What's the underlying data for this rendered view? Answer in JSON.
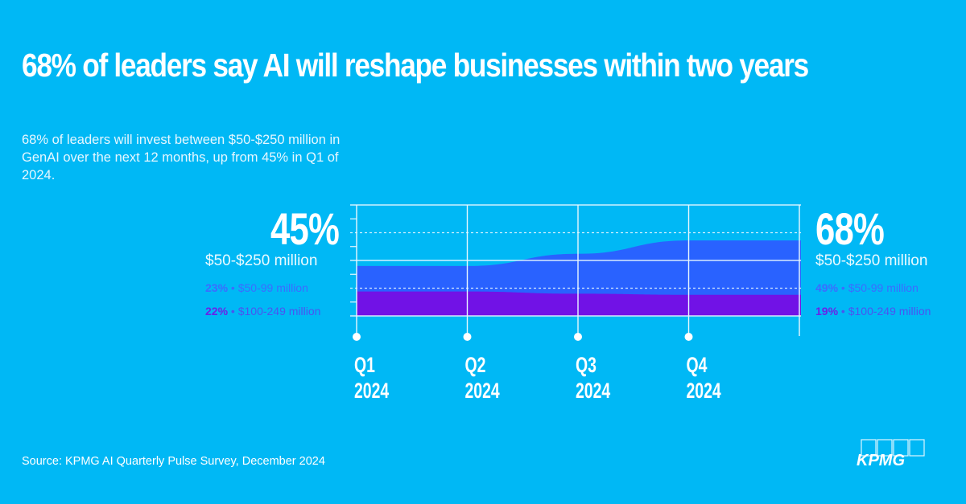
{
  "title": "68% of leaders say AI will reshape businesses within two years",
  "subtitle": "68% of leaders will invest between $50-$250 million in GenAI over the next 12 months, up from 45% in Q1 of 2024.",
  "left_callout": {
    "big": "45%",
    "range": "$50-$250 million",
    "line1_pct": "23%",
    "line1_text": " • $50-99 million",
    "line2_pct": "22%",
    "line2_text": " • $100-249 million"
  },
  "right_callout": {
    "big": "68%",
    "range": "$50-$250 million",
    "line1_pct": "49%",
    "line1_text": " • $50-99 million",
    "line2_pct": "19%",
    "line2_text": " • $100-249 million"
  },
  "source": "Source: KPMG AI Quarterly Pulse Survey, December 2024",
  "logo": "KPMG",
  "colors": {
    "background": "#00b8f5",
    "series_50_99": "#2962ff",
    "series_100_249": "#7112e6",
    "grid": "#e8f8ff"
  },
  "chart_data": {
    "type": "area",
    "stacked": true,
    "categories": [
      [
        "Q1",
        "2024"
      ],
      [
        "Q2",
        "2024"
      ],
      [
        "Q3",
        "2024"
      ],
      [
        "Q4",
        "2024"
      ]
    ],
    "ylim": [
      0,
      100
    ],
    "grid": true,
    "series": [
      {
        "name": "$100-249 million",
        "values": [
          22,
          22,
          20,
          19
        ]
      },
      {
        "name": "$50-99 million",
        "values": [
          23,
          23,
          36,
          49
        ]
      }
    ]
  }
}
